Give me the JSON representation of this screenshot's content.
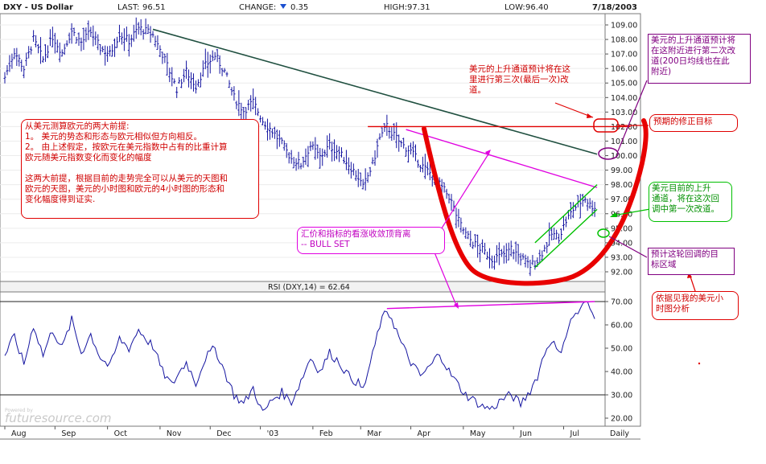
{
  "header": {
    "title": "DXY - US Dollar",
    "last_label": "LAST:",
    "last_value": "96.51",
    "change_label": "CHANGE:",
    "change_value": "0.35",
    "high_label": "HIGH:",
    "high_value": "97.31",
    "low_label": "LOW:",
    "low_value": "96.40",
    "date": "7/18/2003"
  },
  "annotations": {
    "premise": "从美元测算欧元的两大前提:\n1。 美元的势态和形态与欧元相似但方向相反。\n2。 由上述假定，按欧元在美元指数中占有的比重计算\n欧元随美元指数变化而变化的幅度\n\n这两大前提，根据目前的走势完全可以从美元的天图和\n欧元的天图，美元的小时图和欧元的4小时图的形态和\n变化幅度得到证实.",
    "third_pullback": "美元的上升通道预计将在这\n里进行第三次(最后一次)改\n道。",
    "second_pullback": "美元的上升通道预计将\n在这附近进行第二次改\n道(200日均线也在此\n附近)",
    "target": "预期的修正目标",
    "channel_now": "美元目前的上升\n通道，将在这次回\n调中第一次改道。",
    "divergence": "汇价和指标的看涨收敛顶背离\n--  BULL SET",
    "pullback_zone": "预计这轮回调的目\n标区域",
    "hourly_ref": "依据见我的美元小\n时图分析"
  },
  "watermark": {
    "brand": "futuresource.com",
    "sub": "Powered by"
  },
  "chart_data": [
    {
      "type": "line",
      "subtype": "ohlc-bars",
      "title": "DXY - US Dollar",
      "period_label": "Daily",
      "x_labels": [
        "Aug",
        "Sep",
        "Oct",
        "Nov",
        "Dec",
        "'03",
        "Feb",
        "Mar",
        "Apr",
        "May",
        "Jun",
        "Jul"
      ],
      "y_ticks": [
        "109.00",
        "108.00",
        "107.00",
        "106.00",
        "105.00",
        "104.00",
        "103.00",
        "102.00",
        "101.00",
        "100.00",
        "99.00",
        "98.00",
        "97.00",
        "96.00",
        "95.00",
        "94.00",
        "93.00",
        "92.00"
      ],
      "ylim": [
        91.6,
        109.5
      ],
      "x_domain": [
        0,
        250
      ],
      "month_index": [
        0,
        21,
        43,
        65,
        86,
        107,
        129,
        149,
        170,
        192,
        213,
        234
      ],
      "series": [
        {
          "values_approx": [
            [
              0,
              105.4
            ],
            [
              4,
              107.2
            ],
            [
              8,
              106.0
            ],
            [
              12,
              108.0
            ],
            [
              16,
              106.6
            ],
            [
              20,
              108.2
            ],
            [
              24,
              107.1
            ],
            [
              28,
              108.6
            ],
            [
              32,
              107.8
            ],
            [
              36,
              108.5
            ],
            [
              40,
              107.4
            ],
            [
              44,
              107.0
            ],
            [
              48,
              108.4
            ],
            [
              52,
              107.9
            ],
            [
              56,
              108.8
            ],
            [
              60,
              108.5
            ],
            [
              62,
              108.3
            ],
            [
              66,
              107.0
            ],
            [
              70,
              105.4
            ],
            [
              72,
              104.6
            ],
            [
              76,
              105.8
            ],
            [
              80,
              104.8
            ],
            [
              84,
              106.2
            ],
            [
              88,
              106.9
            ],
            [
              92,
              105.8
            ],
            [
              96,
              104.0
            ],
            [
              100,
              103.1
            ],
            [
              104,
              103.7
            ],
            [
              108,
              102.4
            ],
            [
              112,
              101.7
            ],
            [
              116,
              100.8
            ],
            [
              120,
              99.8
            ],
            [
              124,
              99.4
            ],
            [
              128,
              100.7
            ],
            [
              132,
              99.9
            ],
            [
              136,
              100.7
            ],
            [
              140,
              100.2
            ],
            [
              144,
              99.4
            ],
            [
              148,
              98.5
            ],
            [
              150,
              97.8
            ],
            [
              154,
              99.4
            ],
            [
              157,
              101.2
            ],
            [
              160,
              102.0
            ],
            [
              162,
              101.6
            ],
            [
              166,
              100.8
            ],
            [
              170,
              100.3
            ],
            [
              174,
              99.4
            ],
            [
              178,
              98.8
            ],
            [
              182,
              98.0
            ],
            [
              186,
              97.2
            ],
            [
              188,
              96.4
            ],
            [
              190,
              95.5
            ],
            [
              193,
              94.6
            ],
            [
              196,
              94.0
            ],
            [
              200,
              93.5
            ],
            [
              204,
              92.9
            ],
            [
              208,
              93.1
            ],
            [
              212,
              93.6
            ],
            [
              216,
              93.0
            ],
            [
              220,
              92.4
            ],
            [
              223,
              92.8
            ],
            [
              226,
              93.6
            ],
            [
              229,
              94.6
            ],
            [
              232,
              94.4
            ],
            [
              235,
              95.5
            ],
            [
              238,
              96.3
            ],
            [
              241,
              96.8
            ],
            [
              243,
              97.1
            ],
            [
              245,
              96.6
            ],
            [
              247,
              96.5
            ]
          ],
          "label_points": [
            {
              "label": "channel_start",
              "x": 222,
              "y": 92.9
            },
            {
              "label": "last",
              "x": 247,
              "y": 96.51
            }
          ]
        }
      ],
      "trendlines": [
        {
          "name": "downtrend",
          "color": "#1f4f3f",
          "points": [
            [
              62,
              108.7
            ],
            [
              248,
              100.1
            ]
          ]
        },
        {
          "name": "fan-line",
          "color": "#e000e0",
          "points": [
            [
              168,
              101.8
            ],
            [
              248,
              97.8
            ]
          ]
        },
        {
          "name": "neckline",
          "color": "#e00000",
          "points": [
            [
              152,
              102.0
            ],
            [
              262,
              102.0
            ]
          ]
        },
        {
          "name": "channel-upper",
          "color": "#00c000",
          "points": [
            [
              222,
              94.0
            ],
            [
              248,
              98.0
            ]
          ]
        },
        {
          "name": "channel-lower",
          "color": "#00c000",
          "points": [
            [
              222,
              92.3
            ],
            [
              248,
              96.3
            ]
          ]
        }
      ]
    },
    {
      "type": "line",
      "title": "RSI (DXY,14) = 62.64",
      "ylim": [
        18,
        72
      ],
      "y_ticks": [
        "70.00",
        "60.00",
        "50.00",
        "40.00",
        "30.00",
        "20.00"
      ],
      "reference_lines": [
        30,
        70
      ],
      "series": [
        {
          "values_approx": [
            [
              0,
              47
            ],
            [
              4,
              55
            ],
            [
              8,
              43
            ],
            [
              12,
              60
            ],
            [
              16,
              47
            ],
            [
              20,
              58
            ],
            [
              24,
              50
            ],
            [
              28,
              62
            ],
            [
              32,
              48
            ],
            [
              36,
              56
            ],
            [
              40,
              46
            ],
            [
              44,
              42
            ],
            [
              48,
              54
            ],
            [
              52,
              50
            ],
            [
              56,
              58
            ],
            [
              60,
              53
            ],
            [
              62,
              51
            ],
            [
              66,
              40
            ],
            [
              70,
              34
            ],
            [
              72,
              38
            ],
            [
              76,
              44
            ],
            [
              80,
              35
            ],
            [
              84,
              46
            ],
            [
              88,
              50
            ],
            [
              92,
              40
            ],
            [
              96,
              30
            ],
            [
              100,
              26
            ],
            [
              104,
              33
            ],
            [
              108,
              22
            ],
            [
              112,
              28
            ],
            [
              116,
              31
            ],
            [
              120,
              27
            ],
            [
              124,
              36
            ],
            [
              128,
              46
            ],
            [
              132,
              40
            ],
            [
              136,
              48
            ],
            [
              140,
              44
            ],
            [
              144,
              38
            ],
            [
              148,
              35
            ],
            [
              150,
              32
            ],
            [
              154,
              47
            ],
            [
              157,
              60
            ],
            [
              160,
              66
            ],
            [
              162,
              63
            ],
            [
              166,
              52
            ],
            [
              170,
              44
            ],
            [
              174,
              38
            ],
            [
              178,
              42
            ],
            [
              182,
              48
            ],
            [
              186,
              40
            ],
            [
              190,
              34
            ],
            [
              193,
              30
            ],
            [
              196,
              28
            ],
            [
              200,
              25
            ],
            [
              204,
              24
            ],
            [
              208,
              28
            ],
            [
              212,
              30
            ],
            [
              216,
              26
            ],
            [
              220,
              32
            ],
            [
              223,
              38
            ],
            [
              226,
              48
            ],
            [
              229,
              54
            ],
            [
              232,
              47
            ],
            [
              235,
              56
            ],
            [
              238,
              64
            ],
            [
              241,
              66
            ],
            [
              243,
              70
            ],
            [
              245,
              67
            ],
            [
              247,
              62.6
            ]
          ]
        }
      ],
      "trendlines": [
        {
          "name": "rsi-divergence",
          "color": "#e000e0",
          "points": [
            [
              160,
              67
            ],
            [
              247,
              70
            ]
          ]
        }
      ]
    }
  ]
}
